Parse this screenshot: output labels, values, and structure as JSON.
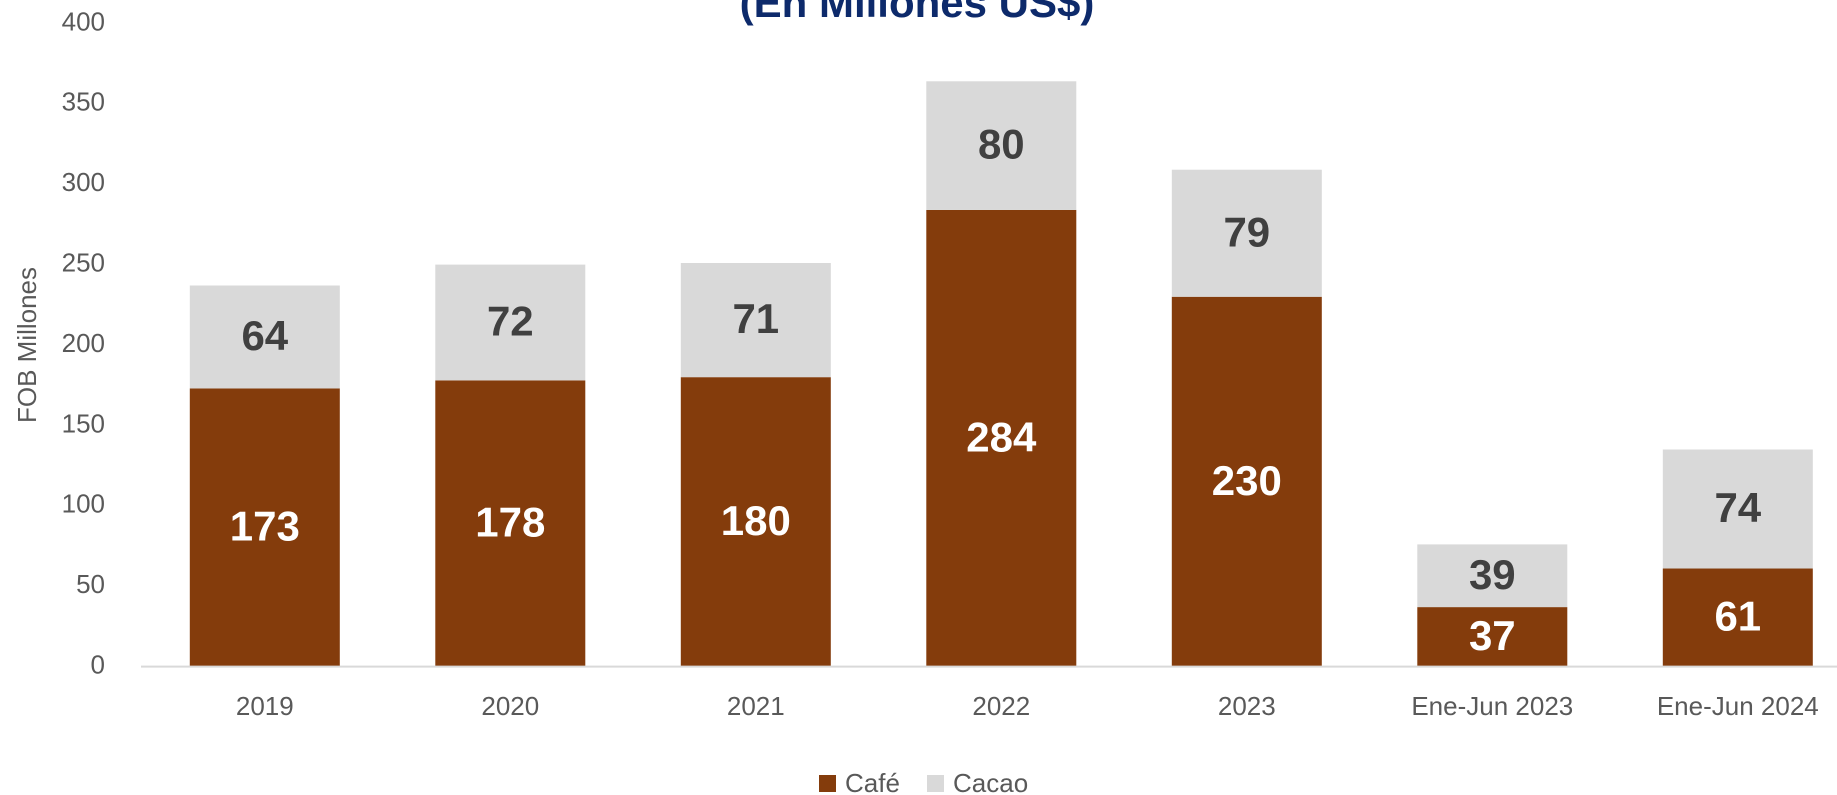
{
  "chart_data": {
    "type": "stacked_bar",
    "title": "(En Millones US$)",
    "y_label": "FOB Millones",
    "categories": [
      "2019",
      "2020",
      "2021",
      "2022",
      "2023",
      "Ene-Jun 2023",
      "Ene-Jun 2024"
    ],
    "series": [
      {
        "name": "Café",
        "color": "#843c0c",
        "values": [
          173,
          178,
          180,
          284,
          230,
          37,
          61
        ]
      },
      {
        "name": "Cacao",
        "color": "#d9d9d9",
        "values": [
          64,
          72,
          71,
          80,
          79,
          39,
          74
        ]
      }
    ],
    "ylim": [
      0,
      400
    ],
    "yticks": [
      0,
      50,
      100,
      150,
      200,
      250,
      300,
      350,
      400
    ],
    "grid": false,
    "legend": "bottom"
  }
}
